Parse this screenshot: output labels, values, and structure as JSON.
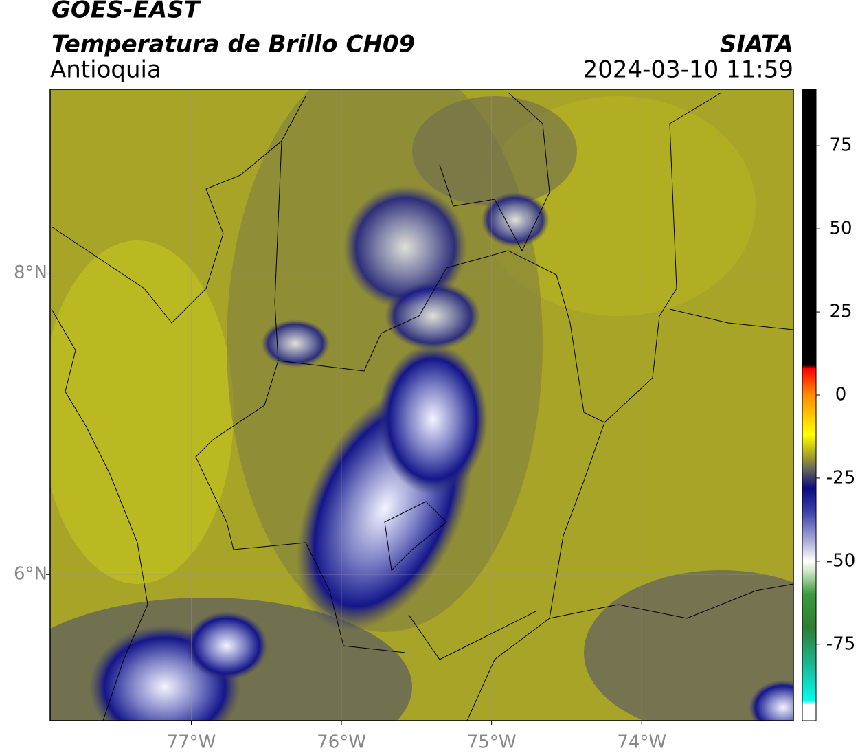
{
  "header": {
    "title": "GOES-EAST",
    "subtitle": "Temperatura de Brillo CH09",
    "region": "Antioquia",
    "source": "SIATA",
    "timestamp": "2024-03-10 11:59"
  },
  "map": {
    "lonlim": [
      -77.94,
      -72.99
    ],
    "latlim": [
      5.03,
      9.22
    ],
    "lon_ticks": [
      {
        "value": -77,
        "label": "77°W"
      },
      {
        "value": -76,
        "label": "76°W"
      },
      {
        "value": -75,
        "label": "75°W"
      },
      {
        "value": -74,
        "label": "74°W"
      }
    ],
    "lat_ticks": [
      {
        "value": 8,
        "label": "8°N"
      },
      {
        "value": 6,
        "label": "6°N"
      }
    ]
  },
  "colorbar": {
    "lim": [
      -98,
      92
    ],
    "ticks": [
      75,
      50,
      25,
      0,
      -25,
      -50,
      -75
    ]
  }
}
